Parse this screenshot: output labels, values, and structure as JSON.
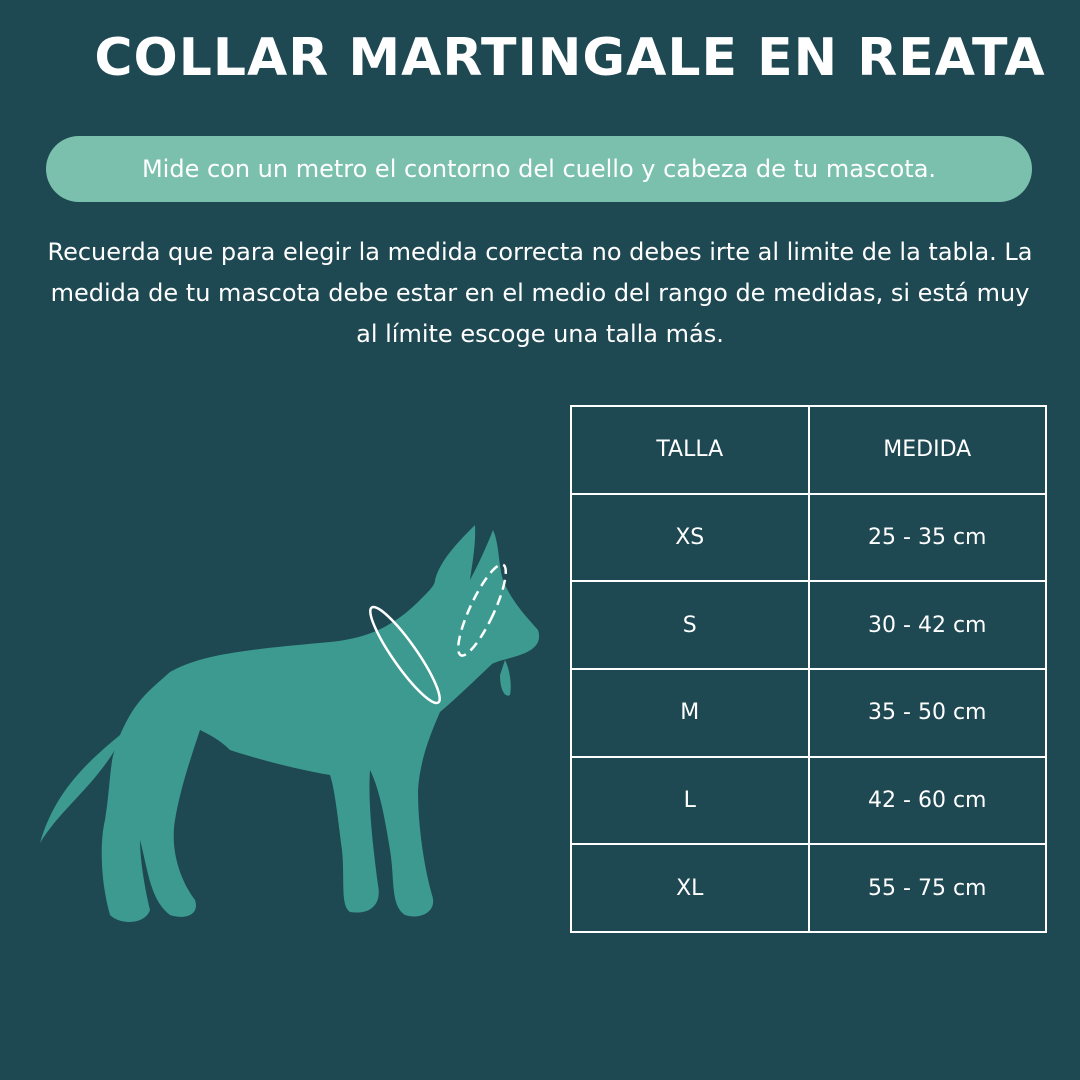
{
  "title": "COLLAR MARTINGALE EN REATA",
  "instruction": "Mide con un metro el contorno del cuello y cabeza de tu mascota.",
  "note": "Recuerda que para elegir la medida correcta no debes irte al limite de la tabla. La medida de tu mascota debe estar en el medio del rango de medidas, si está muy al límite escoge una talla más.",
  "table": {
    "headers": [
      "TALLA",
      "MEDIDA"
    ],
    "rows": [
      [
        "XS",
        "25 - 35 cm"
      ],
      [
        "S",
        "30 - 42 cm"
      ],
      [
        "M",
        "35 - 50 cm"
      ],
      [
        "L",
        "42 - 60 cm"
      ],
      [
        "XL",
        "55 - 75 cm"
      ]
    ]
  },
  "colors": {
    "background": "#1e4852",
    "accent": "#7ac0ad",
    "dog": "#3c9a90"
  },
  "icons": {
    "illustration": "dog-silhouette-icon"
  }
}
